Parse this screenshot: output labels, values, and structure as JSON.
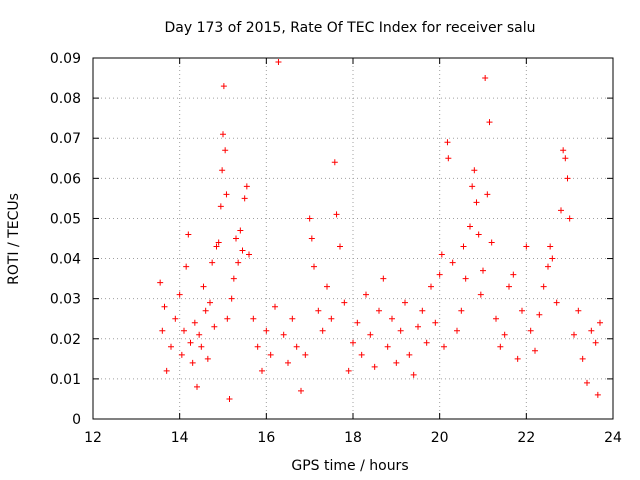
{
  "chart_data": {
    "type": "scatter",
    "title": "Day 173 of 2015, Rate Of TEC Index for receiver salu",
    "xlabel": "GPS time / hours",
    "ylabel": "ROTI / TECUs",
    "xlim": [
      12,
      24
    ],
    "ylim": [
      0,
      0.09
    ],
    "xticks": [
      "12",
      "14",
      "16",
      "18",
      "20",
      "22",
      "24"
    ],
    "yticks": [
      "0",
      "0.01",
      "0.02",
      "0.03",
      "0.04",
      "0.05",
      "0.06",
      "0.07",
      "0.08",
      "0.09"
    ],
    "grid": true,
    "marker": "+",
    "color": "#ff0000",
    "series": [
      {
        "name": "ROTI",
        "points": [
          [
            13.55,
            0.034
          ],
          [
            13.6,
            0.022
          ],
          [
            13.65,
            0.028
          ],
          [
            13.7,
            0.012
          ],
          [
            13.8,
            0.018
          ],
          [
            13.9,
            0.025
          ],
          [
            14.0,
            0.031
          ],
          [
            14.05,
            0.016
          ],
          [
            14.1,
            0.022
          ],
          [
            14.15,
            0.038
          ],
          [
            14.2,
            0.046
          ],
          [
            14.25,
            0.019
          ],
          [
            14.3,
            0.014
          ],
          [
            14.35,
            0.024
          ],
          [
            14.4,
            0.008
          ],
          [
            14.45,
            0.021
          ],
          [
            14.5,
            0.018
          ],
          [
            14.55,
            0.033
          ],
          [
            14.6,
            0.027
          ],
          [
            14.65,
            0.015
          ],
          [
            14.7,
            0.029
          ],
          [
            14.75,
            0.039
          ],
          [
            14.8,
            0.023
          ],
          [
            14.85,
            0.043
          ],
          [
            14.9,
            0.044
          ],
          [
            14.95,
            0.053
          ],
          [
            14.98,
            0.062
          ],
          [
            15.0,
            0.071
          ],
          [
            15.02,
            0.083
          ],
          [
            15.05,
            0.067
          ],
          [
            15.08,
            0.056
          ],
          [
            15.1,
            0.025
          ],
          [
            15.15,
            0.005
          ],
          [
            15.2,
            0.03
          ],
          [
            15.25,
            0.035
          ],
          [
            15.3,
            0.045
          ],
          [
            15.35,
            0.039
          ],
          [
            15.4,
            0.047
          ],
          [
            15.45,
            0.042
          ],
          [
            15.5,
            0.055
          ],
          [
            15.55,
            0.058
          ],
          [
            15.6,
            0.041
          ],
          [
            15.7,
            0.025
          ],
          [
            15.8,
            0.018
          ],
          [
            15.9,
            0.012
          ],
          [
            16.0,
            0.022
          ],
          [
            16.1,
            0.016
          ],
          [
            16.2,
            0.028
          ],
          [
            16.28,
            0.089
          ],
          [
            16.4,
            0.021
          ],
          [
            16.5,
            0.014
          ],
          [
            16.6,
            0.025
          ],
          [
            16.7,
            0.018
          ],
          [
            16.8,
            0.007
          ],
          [
            16.9,
            0.016
          ],
          [
            17.0,
            0.05
          ],
          [
            17.05,
            0.045
          ],
          [
            17.1,
            0.038
          ],
          [
            17.2,
            0.027
          ],
          [
            17.3,
            0.022
          ],
          [
            17.4,
            0.033
          ],
          [
            17.5,
            0.025
          ],
          [
            17.58,
            0.064
          ],
          [
            17.62,
            0.051
          ],
          [
            17.7,
            0.043
          ],
          [
            17.8,
            0.029
          ],
          [
            17.9,
            0.012
          ],
          [
            18.0,
            0.019
          ],
          [
            18.1,
            0.024
          ],
          [
            18.2,
            0.016
          ],
          [
            18.3,
            0.031
          ],
          [
            18.4,
            0.021
          ],
          [
            18.5,
            0.013
          ],
          [
            18.6,
            0.027
          ],
          [
            18.7,
            0.035
          ],
          [
            18.8,
            0.018
          ],
          [
            18.9,
            0.025
          ],
          [
            19.0,
            0.014
          ],
          [
            19.1,
            0.022
          ],
          [
            19.2,
            0.029
          ],
          [
            19.3,
            0.016
          ],
          [
            19.4,
            0.011
          ],
          [
            19.5,
            0.023
          ],
          [
            19.6,
            0.027
          ],
          [
            19.7,
            0.019
          ],
          [
            19.8,
            0.033
          ],
          [
            19.9,
            0.024
          ],
          [
            20.0,
            0.036
          ],
          [
            20.05,
            0.041
          ],
          [
            20.1,
            0.018
          ],
          [
            20.18,
            0.069
          ],
          [
            20.2,
            0.065
          ],
          [
            20.3,
            0.039
          ],
          [
            20.4,
            0.022
          ],
          [
            20.5,
            0.027
          ],
          [
            20.55,
            0.043
          ],
          [
            20.6,
            0.035
          ],
          [
            20.7,
            0.048
          ],
          [
            20.75,
            0.058
          ],
          [
            20.8,
            0.062
          ],
          [
            20.85,
            0.054
          ],
          [
            20.9,
            0.046
          ],
          [
            20.95,
            0.031
          ],
          [
            21.0,
            0.037
          ],
          [
            21.05,
            0.085
          ],
          [
            21.1,
            0.056
          ],
          [
            21.15,
            0.074
          ],
          [
            21.2,
            0.044
          ],
          [
            21.3,
            0.025
          ],
          [
            21.4,
            0.018
          ],
          [
            21.5,
            0.021
          ],
          [
            21.6,
            0.033
          ],
          [
            21.7,
            0.036
          ],
          [
            21.8,
            0.015
          ],
          [
            21.9,
            0.027
          ],
          [
            22.0,
            0.043
          ],
          [
            22.1,
            0.022
          ],
          [
            22.2,
            0.017
          ],
          [
            22.3,
            0.026
          ],
          [
            22.4,
            0.033
          ],
          [
            22.5,
            0.038
          ],
          [
            22.55,
            0.043
          ],
          [
            22.6,
            0.04
          ],
          [
            22.7,
            0.029
          ],
          [
            22.8,
            0.052
          ],
          [
            22.85,
            0.067
          ],
          [
            22.9,
            0.065
          ],
          [
            22.95,
            0.06
          ],
          [
            23.0,
            0.05
          ],
          [
            23.1,
            0.021
          ],
          [
            23.2,
            0.027
          ],
          [
            23.3,
            0.015
          ],
          [
            23.4,
            0.009
          ],
          [
            23.5,
            0.022
          ],
          [
            23.6,
            0.019
          ],
          [
            23.65,
            0.006
          ],
          [
            23.7,
            0.024
          ]
        ]
      }
    ]
  }
}
